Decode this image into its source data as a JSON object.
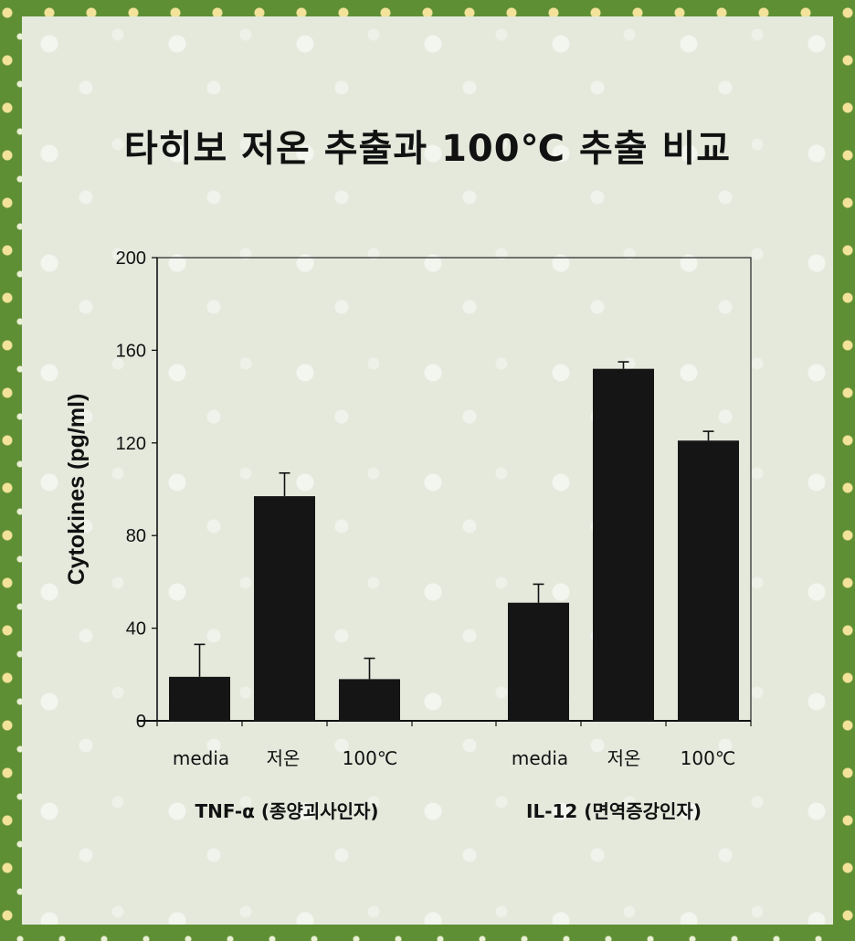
{
  "colors": {
    "border": "#5f8f34",
    "panel": "#e4e9dc",
    "bar": "#151515"
  },
  "chart_data": {
    "type": "bar",
    "title": "타히보 저온 추출과 100℃ 추출 비교",
    "ylabel": "Cytokines (pg/ml)",
    "ylim": [
      0,
      200
    ],
    "yticks": [
      "0",
      "40",
      "80",
      "120",
      "160",
      "200"
    ],
    "error_bars": true,
    "groups": [
      {
        "name": "TNF-α (종양괴사인자)",
        "categories": [
          "media",
          "저온",
          "100℃"
        ],
        "values": [
          19,
          97,
          18
        ],
        "errors": [
          14,
          10,
          9
        ]
      },
      {
        "name": "IL-12 (면역증강인자)",
        "categories": [
          "media",
          "저온",
          "100℃"
        ],
        "values": [
          51,
          152,
          121
        ],
        "errors": [
          8,
          3,
          4
        ]
      }
    ]
  }
}
